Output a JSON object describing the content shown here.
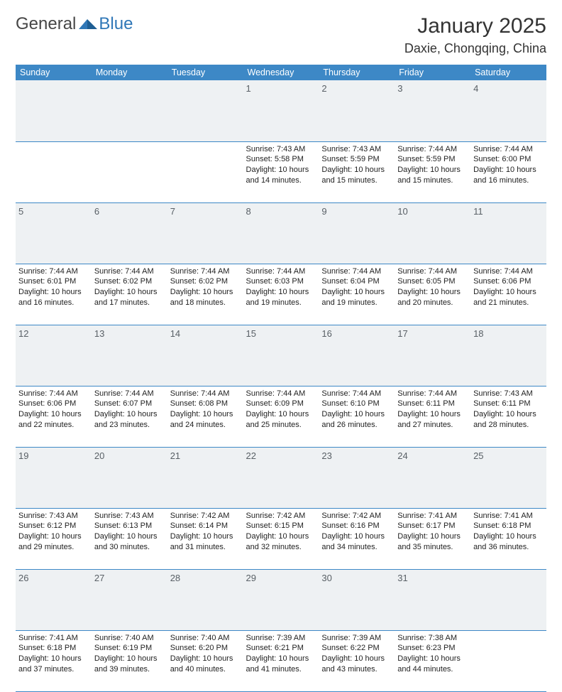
{
  "brand": {
    "general": "General",
    "blue": "Blue"
  },
  "title": "January 2025",
  "location": "Daxie, Chongqing, China",
  "colors": {
    "header_bg": "#3d88c6",
    "header_text": "#ffffff",
    "daynum_bg": "#eef1f3",
    "daynum_text": "#596066",
    "text": "#1f1f1f",
    "rule": "#3d88c6",
    "brand_gray": "#464646",
    "brand_blue": "#2f77b7"
  },
  "weekdays": [
    "Sunday",
    "Monday",
    "Tuesday",
    "Wednesday",
    "Thursday",
    "Friday",
    "Saturday"
  ],
  "weeks": [
    {
      "days": [
        null,
        null,
        null,
        {
          "n": "1",
          "sunrise": "7:43 AM",
          "sunset": "5:58 PM",
          "daylight": "10 hours and 14 minutes."
        },
        {
          "n": "2",
          "sunrise": "7:43 AM",
          "sunset": "5:59 PM",
          "daylight": "10 hours and 15 minutes."
        },
        {
          "n": "3",
          "sunrise": "7:44 AM",
          "sunset": "5:59 PM",
          "daylight": "10 hours and 15 minutes."
        },
        {
          "n": "4",
          "sunrise": "7:44 AM",
          "sunset": "6:00 PM",
          "daylight": "10 hours and 16 minutes."
        }
      ]
    },
    {
      "days": [
        {
          "n": "5",
          "sunrise": "7:44 AM",
          "sunset": "6:01 PM",
          "daylight": "10 hours and 16 minutes."
        },
        {
          "n": "6",
          "sunrise": "7:44 AM",
          "sunset": "6:02 PM",
          "daylight": "10 hours and 17 minutes."
        },
        {
          "n": "7",
          "sunrise": "7:44 AM",
          "sunset": "6:02 PM",
          "daylight": "10 hours and 18 minutes."
        },
        {
          "n": "8",
          "sunrise": "7:44 AM",
          "sunset": "6:03 PM",
          "daylight": "10 hours and 19 minutes."
        },
        {
          "n": "9",
          "sunrise": "7:44 AM",
          "sunset": "6:04 PM",
          "daylight": "10 hours and 19 minutes."
        },
        {
          "n": "10",
          "sunrise": "7:44 AM",
          "sunset": "6:05 PM",
          "daylight": "10 hours and 20 minutes."
        },
        {
          "n": "11",
          "sunrise": "7:44 AM",
          "sunset": "6:06 PM",
          "daylight": "10 hours and 21 minutes."
        }
      ]
    },
    {
      "days": [
        {
          "n": "12",
          "sunrise": "7:44 AM",
          "sunset": "6:06 PM",
          "daylight": "10 hours and 22 minutes."
        },
        {
          "n": "13",
          "sunrise": "7:44 AM",
          "sunset": "6:07 PM",
          "daylight": "10 hours and 23 minutes."
        },
        {
          "n": "14",
          "sunrise": "7:44 AM",
          "sunset": "6:08 PM",
          "daylight": "10 hours and 24 minutes."
        },
        {
          "n": "15",
          "sunrise": "7:44 AM",
          "sunset": "6:09 PM",
          "daylight": "10 hours and 25 minutes."
        },
        {
          "n": "16",
          "sunrise": "7:44 AM",
          "sunset": "6:10 PM",
          "daylight": "10 hours and 26 minutes."
        },
        {
          "n": "17",
          "sunrise": "7:44 AM",
          "sunset": "6:11 PM",
          "daylight": "10 hours and 27 minutes."
        },
        {
          "n": "18",
          "sunrise": "7:43 AM",
          "sunset": "6:11 PM",
          "daylight": "10 hours and 28 minutes."
        }
      ]
    },
    {
      "days": [
        {
          "n": "19",
          "sunrise": "7:43 AM",
          "sunset": "6:12 PM",
          "daylight": "10 hours and 29 minutes."
        },
        {
          "n": "20",
          "sunrise": "7:43 AM",
          "sunset": "6:13 PM",
          "daylight": "10 hours and 30 minutes."
        },
        {
          "n": "21",
          "sunrise": "7:42 AM",
          "sunset": "6:14 PM",
          "daylight": "10 hours and 31 minutes."
        },
        {
          "n": "22",
          "sunrise": "7:42 AM",
          "sunset": "6:15 PM",
          "daylight": "10 hours and 32 minutes."
        },
        {
          "n": "23",
          "sunrise": "7:42 AM",
          "sunset": "6:16 PM",
          "daylight": "10 hours and 34 minutes."
        },
        {
          "n": "24",
          "sunrise": "7:41 AM",
          "sunset": "6:17 PM",
          "daylight": "10 hours and 35 minutes."
        },
        {
          "n": "25",
          "sunrise": "7:41 AM",
          "sunset": "6:18 PM",
          "daylight": "10 hours and 36 minutes."
        }
      ]
    },
    {
      "days": [
        {
          "n": "26",
          "sunrise": "7:41 AM",
          "sunset": "6:18 PM",
          "daylight": "10 hours and 37 minutes."
        },
        {
          "n": "27",
          "sunrise": "7:40 AM",
          "sunset": "6:19 PM",
          "daylight": "10 hours and 39 minutes."
        },
        {
          "n": "28",
          "sunrise": "7:40 AM",
          "sunset": "6:20 PM",
          "daylight": "10 hours and 40 minutes."
        },
        {
          "n": "29",
          "sunrise": "7:39 AM",
          "sunset": "6:21 PM",
          "daylight": "10 hours and 41 minutes."
        },
        {
          "n": "30",
          "sunrise": "7:39 AM",
          "sunset": "6:22 PM",
          "daylight": "10 hours and 43 minutes."
        },
        {
          "n": "31",
          "sunrise": "7:38 AM",
          "sunset": "6:23 PM",
          "daylight": "10 hours and 44 minutes."
        },
        null
      ]
    }
  ],
  "labels": {
    "sunrise": "Sunrise:",
    "sunset": "Sunset:",
    "daylight": "Daylight:"
  }
}
